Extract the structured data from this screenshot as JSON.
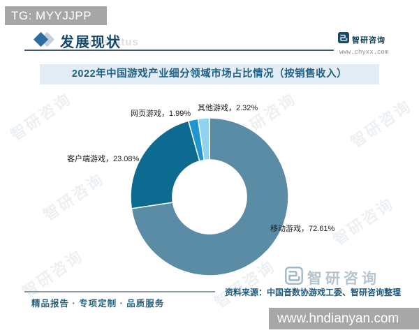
{
  "overlay": {
    "tg_badge": "TG: MYYJJPP",
    "site_badge": "www.hndianyan.com"
  },
  "header": {
    "section_title": "发展现状",
    "watermark_text": "ent status",
    "brand": {
      "name": "智研咨询",
      "url": "www.chyxx.com"
    }
  },
  "title_bar": {
    "text": "2022年中国游戏产业细分领域市场占比情况（按销售收入）"
  },
  "chart_data": {
    "type": "pie",
    "subtype": "donut",
    "title": "2022年中国游戏产业细分领域市场占比情况（按销售收入）",
    "categories": [
      "移动游戏",
      "客户端游戏",
      "网页游戏",
      "其他游戏"
    ],
    "values": [
      72.61,
      23.08,
      1.99,
      2.32
    ],
    "unit": "%",
    "colors": [
      "#5b8ca6",
      "#0d6a91",
      "#1e97d1",
      "#8fd3ee"
    ],
    "labels": [
      "移动游戏，72.61%",
      "客户端游戏，23.08%",
      "网页游戏，1.99%",
      "其他游戏，2.32%"
    ],
    "start_angle_deg": 0,
    "direction": "clockwise",
    "inner_radius_ratio": 0.47,
    "legend": "none",
    "label_style": "outside"
  },
  "footer": {
    "source": "资料来源：中国音数协游戏工委、智研咨询整理",
    "tagline": "精品报告 · 专项定制 · 品质服务",
    "brand_watermark_name": "智研咨询"
  },
  "watermark": {
    "text": "智研咨询"
  },
  "brand_color": "#16486a",
  "accent_color": "#2d6da0"
}
